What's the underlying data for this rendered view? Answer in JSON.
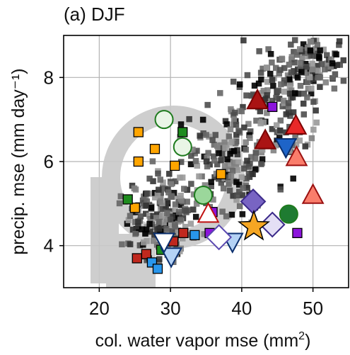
{
  "chart_data": {
    "type": "scatter",
    "title": "(a) DJF",
    "xlabel_main": "col. water vapor mse (mm",
    "xlabel_sup": "2",
    "xlabel_tail": ")",
    "ylabel": "precip. mse (mm  day⁻¹)",
    "xlim": [
      15,
      55
    ],
    "ylim": [
      3,
      9
    ],
    "xticks": [
      "20",
      "30",
      "40",
      "50"
    ],
    "xtick_values": [
      20,
      30,
      40,
      50
    ],
    "yticks": [
      "4",
      "6",
      "8"
    ],
    "ytick_values": [
      4,
      6,
      8
    ],
    "grid": true,
    "watermark": "gray circular glyph (partially hidden)",
    "background_cloud": {
      "name": "grid points",
      "marker": "square",
      "count": 600,
      "colors": [
        "#333333",
        "#4d4d4d",
        "#666666",
        "#808080",
        "#999999",
        "#000000"
      ]
    },
    "series": [
      {
        "marker": "square",
        "fill": "#ffa500",
        "stroke": "#000000",
        "points": [
          [
            25.5,
            6.7
          ],
          [
            25.5,
            6.0
          ],
          [
            27.8,
            6.3
          ],
          [
            25.0,
            4.9
          ],
          [
            30.6,
            5.9
          ],
          [
            37.1,
            5.7
          ]
        ]
      },
      {
        "marker": "square",
        "fill": "#1e8c1e",
        "stroke": "#000000",
        "points": [
          [
            31.7,
            6.7
          ],
          [
            24.0,
            5.1
          ],
          [
            28.7,
            3.9
          ]
        ]
      },
      {
        "marker": "square",
        "fill": "#c0281e",
        "stroke": "#000000",
        "points": [
          [
            25.3,
            3.7
          ],
          [
            26.6,
            3.8
          ],
          [
            30.4,
            4.1
          ],
          [
            31.8,
            4.3
          ]
        ]
      },
      {
        "marker": "square",
        "fill": "#2896ec",
        "stroke": "#000000",
        "points": [
          [
            27.4,
            3.6
          ],
          [
            28.2,
            3.45
          ],
          [
            33.4,
            4.25
          ]
        ]
      },
      {
        "marker": "square",
        "fill": "#8c14dc",
        "stroke": "#000000",
        "points": [
          [
            35.5,
            4.3
          ],
          [
            35.9,
            4.8
          ],
          [
            44.3,
            7.3
          ],
          [
            47.8,
            4.3
          ]
        ]
      },
      {
        "marker": "circle",
        "fill": "#e9f5e6",
        "stroke": "#1e7b1e",
        "points": [
          [
            29.1,
            7.0
          ],
          [
            31.7,
            6.35
          ]
        ]
      },
      {
        "marker": "circle",
        "fill": "#9bd79b",
        "stroke": "#1e7b1e",
        "points": [
          [
            34.6,
            5.2
          ]
        ]
      },
      {
        "marker": "circle",
        "fill": "#1e7b31",
        "stroke": "#1e7b1e",
        "points": [
          [
            46.6,
            4.75
          ]
        ]
      },
      {
        "marker": "triangle-up",
        "fill": "#aa1414",
        "stroke": "#7a0000",
        "points": [
          [
            42.2,
            7.45
          ],
          [
            43.3,
            6.5
          ]
        ]
      },
      {
        "marker": "triangle-up",
        "fill": "#e82828",
        "stroke": "#7a0000",
        "points": [
          [
            47.6,
            6.85
          ]
        ]
      },
      {
        "marker": "triangle-up",
        "fill": "#fa7d6b",
        "stroke": "#9a1010",
        "points": [
          [
            47.7,
            6.1
          ],
          [
            50.0,
            5.2
          ]
        ]
      },
      {
        "marker": "triangle-up",
        "fill": "#ffffff",
        "stroke": "#c01010",
        "points": [
          [
            35.3,
            4.75
          ]
        ]
      },
      {
        "marker": "triangle-down",
        "fill": "#1e64c8",
        "stroke": "#0a2f6e",
        "points": [
          [
            46.2,
            6.35
          ]
        ]
      },
      {
        "marker": "triangle-down",
        "fill": "#b4d2f5",
        "stroke": "#0a2f6e",
        "points": [
          [
            30.1,
            3.75
          ],
          [
            38.7,
            4.1
          ]
        ]
      },
      {
        "marker": "triangle-down",
        "fill": "#ffffff",
        "stroke": "#0a2f6e",
        "points": [
          [
            29.1,
            4.1
          ]
        ]
      },
      {
        "marker": "diamond",
        "fill": "#7864c3",
        "stroke": "#3b2a8a",
        "points": [
          [
            41.6,
            5.05
          ]
        ]
      },
      {
        "marker": "diamond",
        "fill": "#e4dff5",
        "stroke": "#3b2a8a",
        "points": [
          [
            44.3,
            4.5
          ]
        ]
      },
      {
        "marker": "diamond",
        "fill": "#ffffff",
        "stroke": "#5a48b0",
        "points": [
          [
            36.8,
            4.2
          ]
        ]
      },
      {
        "marker": "star",
        "fill": "#f5a623",
        "stroke": "#000000",
        "points": [
          [
            41.7,
            4.45
          ]
        ]
      }
    ]
  }
}
